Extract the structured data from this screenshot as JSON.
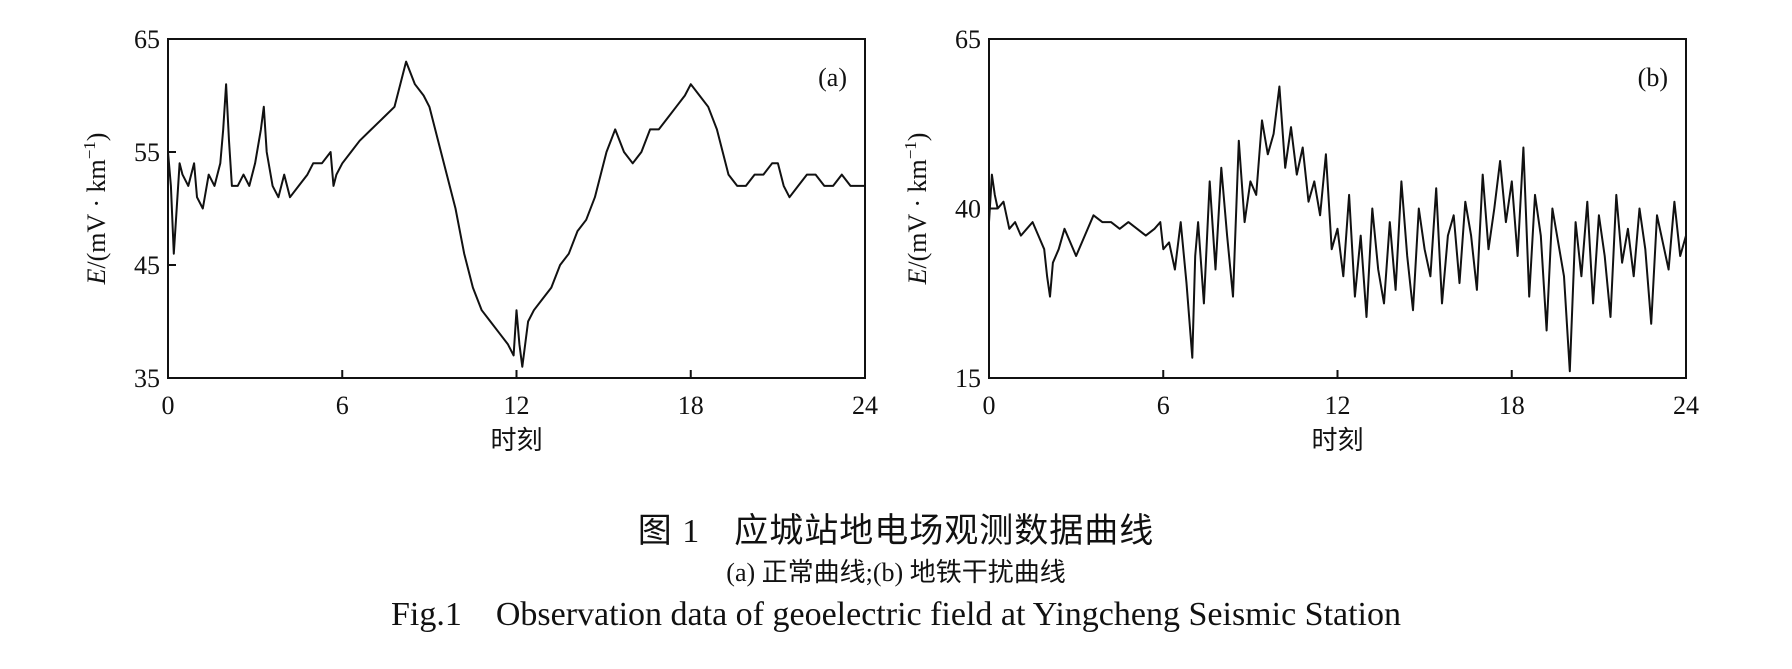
{
  "figure": {
    "caption_cn_num": "图 1",
    "caption_cn_text": "应城站地电场观测数据曲线",
    "caption_sub": "(a) 正常曲线;(b) 地铁干扰曲线",
    "caption_en_num": "Fig.1",
    "caption_en_text": "Observation data of geoelectric field at Yingcheng Seismic Station"
  },
  "chart_data": [
    {
      "type": "line",
      "panel_label": "(a)",
      "xlabel": "时刻",
      "ylabel_var": "E",
      "ylabel_unit": "/(mV · km",
      "ylabel_sup": "−1",
      "ylabel_close": ")",
      "xlim": [
        0,
        24
      ],
      "ylim": [
        35,
        65
      ],
      "xticks": [
        0,
        6,
        12,
        18,
        24
      ],
      "yticks": [
        35,
        45,
        55,
        65
      ],
      "series": [
        {
          "x": [
            0.0,
            0.1,
            0.2,
            0.3,
            0.4,
            0.5,
            0.7,
            0.9,
            1.0,
            1.2,
            1.4,
            1.6,
            1.8,
            1.9,
            2.0,
            2.1,
            2.2,
            2.4,
            2.6,
            2.8,
            3.0,
            3.2,
            3.3,
            3.4,
            3.6,
            3.8,
            4.0,
            4.2,
            4.5,
            4.8,
            5.0,
            5.3,
            5.6,
            5.7,
            5.8,
            6.0,
            6.3,
            6.6,
            7.0,
            7.4,
            7.8,
            8.0,
            8.2,
            8.5,
            8.8,
            9.0,
            9.3,
            9.6,
            9.9,
            10.2,
            10.5,
            10.8,
            11.1,
            11.4,
            11.7,
            11.9,
            12.0,
            12.1,
            12.2,
            12.3,
            12.4,
            12.6,
            12.9,
            13.2,
            13.5,
            13.8,
            14.1,
            14.4,
            14.7,
            14.9,
            15.1,
            15.4,
            15.7,
            16.0,
            16.3,
            16.6,
            16.9,
            17.2,
            17.5,
            17.8,
            18.0,
            18.3,
            18.6,
            18.9,
            19.1,
            19.3,
            19.6,
            19.9,
            20.2,
            20.5,
            20.8,
            21.0,
            21.2,
            21.4,
            21.7,
            22.0,
            22.3,
            22.6,
            22.9,
            23.2,
            23.5,
            23.8,
            24.0
          ],
          "y": [
            55,
            52,
            46,
            50,
            54,
            53,
            52,
            54,
            51,
            50,
            53,
            52,
            54,
            57,
            61,
            56,
            52,
            52,
            53,
            52,
            54,
            57,
            59,
            55,
            52,
            51,
            53,
            51,
            52,
            53,
            54,
            54,
            55,
            52,
            53,
            54,
            55,
            56,
            57,
            58,
            59,
            61,
            63,
            61,
            60,
            59,
            56,
            53,
            50,
            46,
            43,
            41,
            40,
            39,
            38,
            37,
            41,
            38,
            36,
            38,
            40,
            41,
            42,
            43,
            45,
            46,
            48,
            49,
            51,
            53,
            55,
            57,
            55,
            54,
            55,
            57,
            57,
            58,
            59,
            60,
            61,
            60,
            59,
            57,
            55,
            53,
            52,
            52,
            53,
            53,
            54,
            54,
            52,
            51,
            52,
            53,
            53,
            52,
            52,
            53,
            52,
            52,
            52
          ]
        }
      ]
    },
    {
      "type": "line",
      "panel_label": "(b)",
      "xlabel": "时刻",
      "ylabel_var": "E",
      "ylabel_unit": "/(mV · km",
      "ylabel_sup": "−1",
      "ylabel_close": ")",
      "xlim": [
        0,
        24
      ],
      "ylim": [
        15,
        65
      ],
      "xticks": [
        0,
        6,
        12,
        18,
        24
      ],
      "yticks": [
        15,
        40,
        65
      ],
      "series": [
        {
          "x": [
            0.0,
            0.1,
            0.2,
            0.3,
            0.5,
            0.7,
            0.9,
            1.1,
            1.3,
            1.5,
            1.7,
            1.9,
            2.0,
            2.1,
            2.2,
            2.4,
            2.6,
            2.8,
            3.0,
            3.3,
            3.6,
            3.9,
            4.2,
            4.5,
            4.8,
            5.1,
            5.4,
            5.7,
            5.9,
            6.0,
            6.2,
            6.4,
            6.6,
            6.8,
            7.0,
            7.1,
            7.2,
            7.4,
            7.6,
            7.8,
            8.0,
            8.2,
            8.4,
            8.6,
            8.8,
            9.0,
            9.2,
            9.4,
            9.6,
            9.8,
            10.0,
            10.2,
            10.4,
            10.6,
            10.8,
            11.0,
            11.2,
            11.4,
            11.6,
            11.8,
            12.0,
            12.2,
            12.4,
            12.6,
            12.8,
            13.0,
            13.2,
            13.4,
            13.6,
            13.8,
            14.0,
            14.2,
            14.4,
            14.6,
            14.8,
            15.0,
            15.2,
            15.4,
            15.6,
            15.8,
            16.0,
            16.2,
            16.4,
            16.6,
            16.8,
            17.0,
            17.2,
            17.4,
            17.6,
            17.8,
            18.0,
            18.2,
            18.4,
            18.6,
            18.8,
            19.0,
            19.2,
            19.4,
            19.6,
            19.8,
            20.0,
            20.2,
            20.4,
            20.6,
            20.8,
            21.0,
            21.2,
            21.4,
            21.6,
            21.8,
            22.0,
            22.2,
            22.4,
            22.6,
            22.8,
            23.0,
            23.2,
            23.4,
            23.6,
            23.8,
            24.0
          ],
          "y": [
            38,
            45,
            42,
            40,
            41,
            37,
            38,
            36,
            37,
            38,
            36,
            34,
            30,
            27,
            32,
            34,
            37,
            35,
            33,
            36,
            39,
            38,
            38,
            37,
            38,
            37,
            36,
            37,
            38,
            34,
            35,
            31,
            38,
            29,
            18,
            33,
            38,
            26,
            44,
            31,
            46,
            36,
            27,
            50,
            38,
            44,
            42,
            53,
            48,
            51,
            58,
            46,
            52,
            45,
            49,
            41,
            44,
            39,
            48,
            34,
            37,
            30,
            42,
            27,
            36,
            24,
            40,
            31,
            26,
            38,
            28,
            44,
            33,
            25,
            40,
            34,
            30,
            43,
            26,
            36,
            39,
            29,
            41,
            36,
            28,
            45,
            34,
            40,
            47,
            38,
            44,
            33,
            49,
            27,
            42,
            36,
            22,
            40,
            35,
            30,
            16,
            38,
            30,
            41,
            26,
            39,
            33,
            24,
            42,
            32,
            37,
            30,
            40,
            34,
            23,
            39,
            35,
            31,
            41,
            33,
            36
          ]
        }
      ]
    }
  ]
}
